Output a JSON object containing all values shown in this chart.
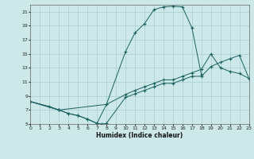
{
  "xlabel": "Humidex (Indice chaleur)",
  "background_color": "#cce8e8",
  "grid_color": "#aacece",
  "line_color": "#1a6060",
  "xlim": [
    0,
    23
  ],
  "ylim": [
    5,
    22
  ],
  "xtick_vals": [
    0,
    1,
    2,
    3,
    4,
    5,
    6,
    7,
    8,
    9,
    10,
    11,
    12,
    13,
    14,
    15,
    16,
    17,
    18,
    19,
    20,
    21,
    22,
    23
  ],
  "ytick_vals": [
    5,
    7,
    9,
    11,
    13,
    15,
    17,
    19,
    21
  ],
  "line1_x": [
    0,
    2,
    3,
    4,
    5,
    6,
    7,
    8,
    10,
    11,
    12,
    13,
    14,
    15,
    16,
    17,
    18
  ],
  "line1_y": [
    8.2,
    7.5,
    7.0,
    6.5,
    6.2,
    5.7,
    5.1,
    7.8,
    15.3,
    18.0,
    19.3,
    21.3,
    21.7,
    21.8,
    21.7,
    18.7,
    12.0
  ],
  "line2_x": [
    0,
    3,
    8,
    10,
    11,
    12,
    13,
    14,
    15,
    16,
    17,
    18,
    19,
    20,
    21,
    22,
    23
  ],
  "line2_y": [
    8.2,
    7.0,
    7.8,
    9.2,
    9.8,
    10.3,
    10.8,
    11.3,
    11.3,
    11.8,
    12.3,
    12.8,
    15.0,
    13.0,
    12.5,
    12.2,
    11.5
  ],
  "line3_x": [
    0,
    3,
    4,
    5,
    6,
    7,
    7.5,
    8,
    10,
    11,
    12,
    13,
    14,
    15,
    16,
    17,
    18,
    19,
    20,
    21,
    22,
    23
  ],
  "line3_y": [
    8.2,
    7.0,
    6.5,
    6.2,
    5.7,
    5.1,
    5.0,
    5.1,
    8.8,
    9.3,
    9.8,
    10.3,
    10.8,
    10.8,
    11.3,
    11.8,
    11.8,
    13.2,
    13.8,
    14.3,
    14.8,
    11.5
  ]
}
